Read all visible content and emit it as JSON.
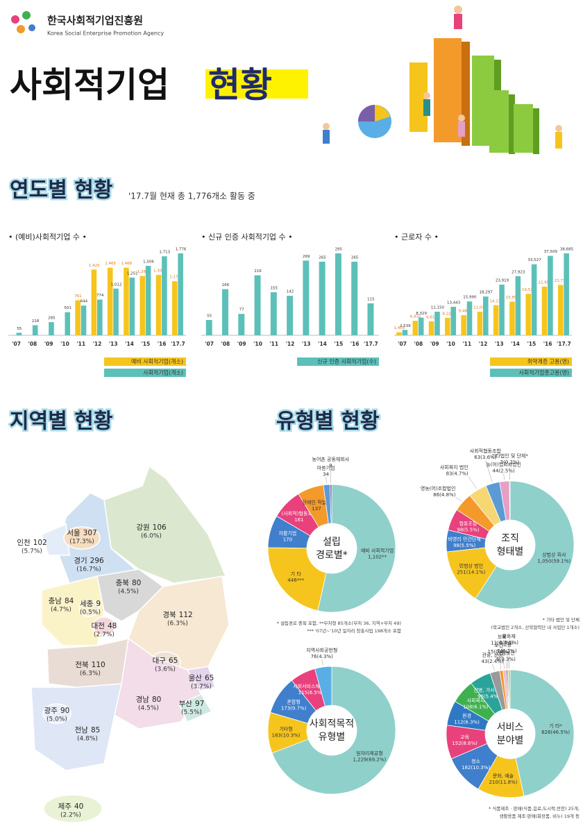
{
  "header": {
    "org": "한국사회적기업진흥원",
    "org_en": "Korea Social Enterprise Promotion Agency",
    "title": "사회적기업",
    "title_highlight": "현황"
  },
  "sections": {
    "yearly": {
      "title": "연도별 현황",
      "subtitle": "'17.7월 현재 총 1,776개소 활동 중"
    },
    "regional": {
      "title": "지역별 현황"
    },
    "types": {
      "title": "유형별 현황"
    }
  },
  "chart_data": [
    {
      "type": "bar",
      "title": "• (예비)사회적기업 수 •",
      "categories": [
        "'07",
        "'08",
        "'09",
        "'10",
        "'11",
        "'12",
        "'13",
        "'14",
        "'15",
        "'16",
        "'17.7"
      ],
      "series": [
        {
          "name": "예비 사회적기업(개소)",
          "color": "#f6c51d",
          "label_color": "#e8731a",
          "values": [
            null,
            null,
            null,
            null,
            761,
            1425,
            1465,
            1466,
            1286,
            1309,
            1172
          ],
          "value_labels": [
            null,
            null,
            null,
            null,
            "761",
            "1,425",
            "1,465",
            "1,466",
            "1,286",
            "1,309",
            "1,172"
          ]
        },
        {
          "name": "사회적기업(개소)",
          "color": "#5cc0b9",
          "label_color": "#333333",
          "values": [
            55,
            218,
            285,
            501,
            644,
            774,
            1012,
            1251,
            1506,
            1713,
            1776
          ],
          "value_labels": [
            "55",
            "218",
            "285",
            "501",
            "644",
            "774",
            "1,012",
            "1,251",
            "1,506",
            "1,713",
            "1,776"
          ]
        }
      ]
    },
    {
      "type": "bar",
      "title": "• 신규 인증 사회적기업 수 •",
      "categories": [
        "'07",
        "'08",
        "'09",
        "'10",
        "'11",
        "'12",
        "'13",
        "'14",
        "'15",
        "'16",
        "'17.7"
      ],
      "series": [
        {
          "name": "신규 인증 사회적기업(수)",
          "color": "#5cc0b9",
          "label_color": "#333333",
          "values": [
            55,
            166,
            77,
            216,
            155,
            142,
            269,
            265,
            295,
            265,
            115
          ],
          "value_labels": [
            "55",
            "166",
            "77",
            "216",
            "155",
            "142",
            "269",
            "265",
            "295",
            "265",
            "115"
          ]
        }
      ]
    },
    {
      "type": "bar",
      "title": "• 근로자 수 •",
      "categories": [
        "'07",
        "'08",
        "'09",
        "'10",
        "'11",
        "'12",
        "'13",
        "'14",
        "'15",
        "'16",
        "'17.7"
      ],
      "series": [
        {
          "name": "취약계층 고용(명)",
          "color": "#f6c51d",
          "label_color": "#e8731a",
          "values": [
            1403,
            6832,
            6618,
            8228,
            9488,
            11098,
            14179,
            15857,
            19532,
            22993,
            23779
          ],
          "value_labels": [
            "1,403",
            "6,832",
            "6,618",
            "8,228",
            "9,488",
            "11,098",
            "14,179",
            "15,857",
            "19,532",
            "22,993",
            "23,779"
          ]
        },
        {
          "name": "사회적기업총고용(명)",
          "color": "#5cc0b9",
          "label_color": "#333333",
          "values": [
            2539,
            8329,
            11150,
            13443,
            15990,
            18297,
            23919,
            27923,
            33527,
            37509,
            38685
          ],
          "value_labels": [
            "2,539",
            "8,329",
            "11,150",
            "13,443",
            "15,990",
            "18,297",
            "23,919",
            "27,923",
            "33,527",
            "37,509",
            "38,685"
          ]
        }
      ]
    },
    {
      "type": "pie",
      "title": [
        "설립",
        "경로별*"
      ],
      "categories": [
        "예비 사회적기업",
        "기 타",
        "자활기업",
        "(사회적)협동조합",
        "장애인 작업장",
        "마을기업",
        "농어촌 공동체회사"
      ],
      "values": [
        1102,
        446,
        170,
        161,
        137,
        34,
        9
      ],
      "value_labels": [
        "1,102**",
        "446***",
        "170",
        "161",
        "137",
        "34",
        "9"
      ],
      "colors": [
        "#8fd0cb",
        "#f6c51d",
        "#3f7fcc",
        "#e8417c",
        "#f39a2b",
        "#5b9bd5",
        "#7a5ea8"
      ],
      "notes": [
        "* 설립경로 중복 포함, **부처형 85개소(부처 36, 지역+부처 49)",
        "*** '07년~'10년 일자리 창출사업 198개소 포함"
      ]
    },
    {
      "type": "pie",
      "title": [
        "조직",
        "형태별"
      ],
      "categories": [
        "상법상 회사",
        "민법상 법인",
        "비영리 민간단체",
        "협동조합",
        "영농(어)조합법인",
        "사회복지 법인",
        "사회적협동조합",
        "농(어)업회사법인",
        "기타법인 및 단체*"
      ],
      "values": [
        1050,
        251,
        98,
        98,
        86,
        83,
        63,
        44,
        3
      ],
      "value_labels": [
        "1,050(59.1%)",
        "251(14.1%)",
        "98(5.5%)",
        "98(5.5%)",
        "86(4.8%)",
        "83(4.7%)",
        "63(3.6%)",
        "44(2.5%)",
        "3(0.2%)"
      ],
      "colors": [
        "#8fd0cb",
        "#f6c51d",
        "#3f7fcc",
        "#e8417c",
        "#f39a2b",
        "#f7d774",
        "#5b9bd5",
        "#e6a0c4",
        "#2a8f88"
      ],
      "notes": [
        "* 기타 법인 및 단체",
        "(학교법인 2개소, 산학협력단 내 사업단 1개소)"
      ]
    },
    {
      "type": "pie",
      "title": [
        "사회적목적",
        "유형별"
      ],
      "categories": [
        "일자리제공형",
        "기타형",
        "혼합형",
        "사회서비스제공형",
        "지역사회공헌형"
      ],
      "values": [
        1229,
        183,
        173,
        115,
        76
      ],
      "value_labels": [
        "1,229(69.2%)",
        "183(10.3%)",
        "173(9.7%)",
        "115(6.5%)",
        "76(4.3%)"
      ],
      "colors": [
        "#8fd0cb",
        "#f6c51d",
        "#3f7fcc",
        "#e8417c",
        "#5aaee6"
      ],
      "notes": []
    },
    {
      "type": "pie",
      "title": [
        "서비스",
        "분야별"
      ],
      "categories": [
        "기 타*",
        "문화, 예술",
        "청소",
        "교육",
        "환경",
        "사회복지",
        "간병, 가사지원",
        "관광, 운동",
        "보건",
        "보육",
        "산림보전",
        "고용",
        "문화재"
      ],
      "values": [
        826,
        210,
        182,
        152,
        112,
        108,
        96,
        43,
        15,
        13,
        6,
        5,
        8
      ],
      "value_labels": [
        "826(46.5%)",
        "210(11.8%)",
        "182(10.3%)",
        "152(8.6%)",
        "112(6.3%)",
        "108(6.1%)",
        "96(5.4%)",
        "43(2.4%)",
        "15(0.8%)",
        "13(0.7%)",
        "6(0.3%)",
        "5(0.3%)",
        "8(0.5%)"
      ],
      "colors": [
        "#8fd0cb",
        "#f6c51d",
        "#3f7fcc",
        "#e8417c",
        "#2f78c4",
        "#3fb04f",
        "#2aa39a",
        "#9a9a9a",
        "#f39a2b",
        "#f2b8c6",
        "#7a5ea8",
        "#5aaee6",
        "#d6c23a"
      ],
      "notes": [
        "* 식품제조 · 판매(식품,음료,도시락,반찬) 25개,",
        "생활용품 제조·판매(화장품, 비누) 19개 등"
      ]
    }
  ],
  "regions": [
    {
      "name": "서울",
      "count": 307,
      "share": "(17.3%)"
    },
    {
      "name": "인천",
      "count": 102,
      "share": "(5.7%)"
    },
    {
      "name": "경기",
      "count": 296,
      "share": "(16.7%)"
    },
    {
      "name": "강원",
      "count": 106,
      "share": "(6.0%)"
    },
    {
      "name": "충북",
      "count": 80,
      "share": "(4.5%)"
    },
    {
      "name": "충남",
      "count": 84,
      "share": "(4.7%)"
    },
    {
      "name": "세종",
      "count": 9,
      "share": "(0.5%)"
    },
    {
      "name": "대전",
      "count": 48,
      "share": "(2.7%)"
    },
    {
      "name": "경북",
      "count": 112,
      "share": "(6.3%)"
    },
    {
      "name": "대구",
      "count": 65,
      "share": "(3.6%)"
    },
    {
      "name": "울산",
      "count": 65,
      "share": "(3.7%)"
    },
    {
      "name": "전북",
      "count": 110,
      "share": "(6.3%)"
    },
    {
      "name": "경남",
      "count": 80,
      "share": "(4.5%)"
    },
    {
      "name": "부산",
      "count": 97,
      "share": "(5.5%)"
    },
    {
      "name": "광주",
      "count": 90,
      "share": "(5.0%)"
    },
    {
      "name": "전남",
      "count": 85,
      "share": "(4.8%)"
    },
    {
      "name": "제주",
      "count": 40,
      "share": "(2.2%)"
    }
  ]
}
